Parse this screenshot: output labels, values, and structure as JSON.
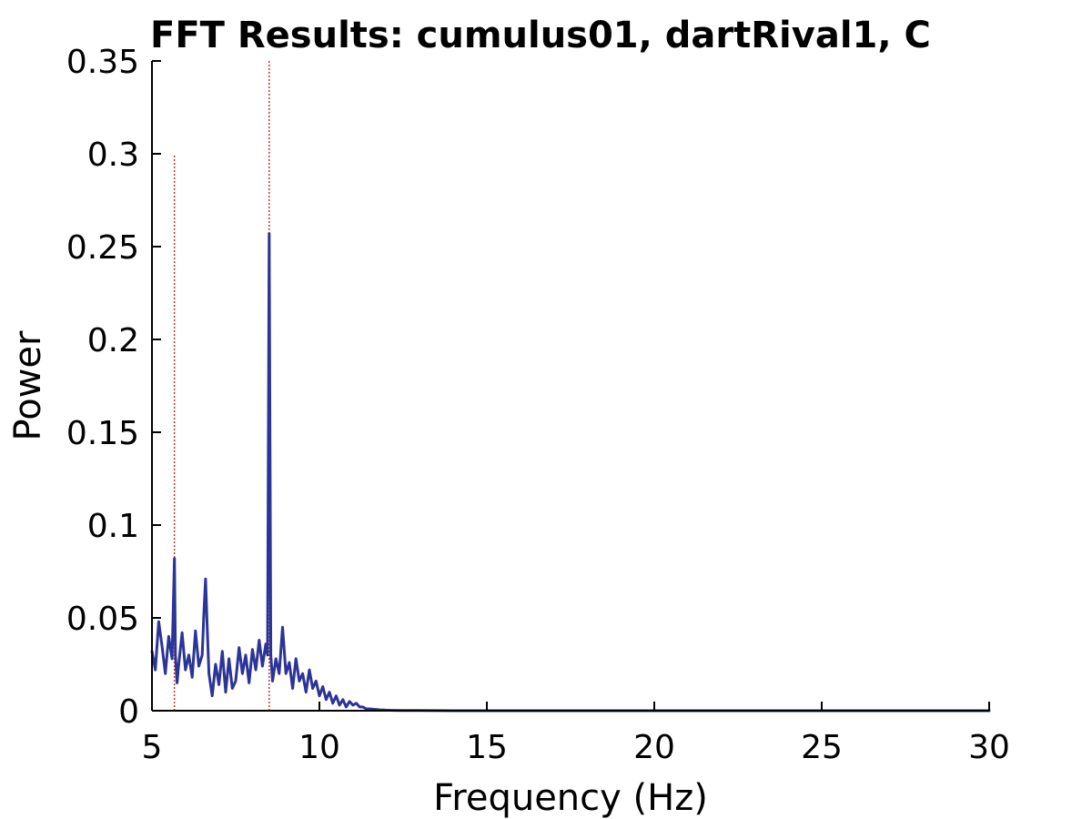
{
  "chart_data": {
    "type": "line",
    "title": "FFT Results: cumulus01, dartRival1, C",
    "xlabel": "Frequency (Hz)",
    "ylabel": "Power",
    "xlim": [
      5,
      30
    ],
    "ylim": [
      0,
      0.35
    ],
    "x_ticks": [
      5,
      10,
      15,
      20,
      25,
      30
    ],
    "x_tick_labels": [
      "5",
      "10",
      "15",
      "20",
      "25",
      "30"
    ],
    "y_ticks": [
      0,
      0.05,
      0.1,
      0.15,
      0.2,
      0.25,
      0.3,
      0.35
    ],
    "y_tick_labels": [
      "0",
      "0.05",
      "0.1",
      "0.15",
      "0.2",
      "0.25",
      "0.3",
      "0.35"
    ],
    "grid": false,
    "legend": false,
    "series": [
      {
        "color": "#2b3497",
        "x": [
          5.0,
          5.1,
          5.2,
          5.3,
          5.4,
          5.5,
          5.6,
          5.67,
          5.7,
          5.75,
          5.8,
          5.9,
          6.0,
          6.1,
          6.2,
          6.3,
          6.4,
          6.5,
          6.55,
          6.6,
          6.65,
          6.7,
          6.8,
          6.9,
          7.0,
          7.1,
          7.2,
          7.3,
          7.4,
          7.5,
          7.6,
          7.7,
          7.8,
          7.9,
          8.0,
          8.1,
          8.2,
          8.3,
          8.4,
          8.45,
          8.5,
          8.55,
          8.6,
          8.7,
          8.8,
          8.9,
          9.0,
          9.1,
          9.2,
          9.3,
          9.4,
          9.5,
          9.6,
          9.7,
          9.8,
          9.9,
          10.0,
          10.1,
          10.2,
          10.3,
          10.4,
          10.5,
          10.6,
          10.7,
          10.8,
          10.9,
          11.0,
          11.1,
          11.2,
          11.3,
          11.4,
          11.5,
          11.6,
          11.8,
          12.0,
          12.2,
          12.5,
          13.0,
          14.0,
          15.0,
          17.5,
          20.0,
          22.5,
          25.0,
          27.5,
          30.0
        ],
        "values": [
          0.032,
          0.022,
          0.048,
          0.035,
          0.02,
          0.04,
          0.028,
          0.082,
          0.03,
          0.015,
          0.025,
          0.042,
          0.022,
          0.03,
          0.018,
          0.043,
          0.024,
          0.03,
          0.052,
          0.071,
          0.045,
          0.02,
          0.008,
          0.025,
          0.014,
          0.032,
          0.01,
          0.028,
          0.012,
          0.016,
          0.034,
          0.02,
          0.03,
          0.015,
          0.033,
          0.022,
          0.038,
          0.024,
          0.036,
          0.03,
          0.257,
          0.03,
          0.016,
          0.028,
          0.02,
          0.045,
          0.02,
          0.026,
          0.012,
          0.028,
          0.016,
          0.02,
          0.01,
          0.022,
          0.012,
          0.016,
          0.008,
          0.013,
          0.006,
          0.01,
          0.004,
          0.008,
          0.003,
          0.006,
          0.002,
          0.005,
          0.003,
          0.004,
          0.002,
          0.002,
          0.001,
          0.001,
          0.0008,
          0.0005,
          0.0003,
          0.0002,
          0.0001,
          0.0001,
          0.0,
          0.0,
          0.0,
          0.0,
          0.0,
          0.0,
          0.0,
          0.0
        ]
      }
    ],
    "markers": [
      {
        "x": 5.67,
        "y_top": 0.3,
        "color": "#c0392b"
      },
      {
        "x": 8.5,
        "y_top": 0.35,
        "color": "#c0392b"
      }
    ]
  }
}
